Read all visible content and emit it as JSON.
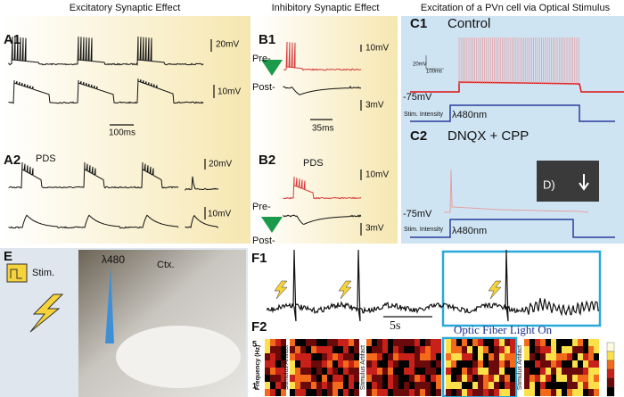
{
  "headers": {
    "a": "Excitatory Synaptic Effect",
    "b": "Inhibitory Synaptic Effect",
    "c": "Excitation of a PVn cell via Optical Stimulus"
  },
  "panel_a": {
    "a1": "A1",
    "a2": "A2",
    "a1_top_scale": "20mV",
    "a1_bottom_scale": "10mV",
    "time_scale": "100ms",
    "pds": "PDS",
    "a2_top_scale": "20mV",
    "a2_bottom_scale": "10mV"
  },
  "panel_b": {
    "b1": "B1",
    "b2": "B2",
    "pre_1": "Pre-",
    "post_1": "Post-",
    "b1_top_scale": "10mV",
    "b1_bottom_scale": "3mV",
    "time_scale": "35ms",
    "pds": "PDS",
    "b2_top_scale": "10mV",
    "b2_bottom_scale": "3mV",
    "pre_2": "Pre-",
    "post_2": "Post-"
  },
  "panel_c": {
    "c1": "C1",
    "c1_title": "Control",
    "c1_v_scale": "20mV",
    "c1_t_scale": "100ms",
    "c1_rest": "-75mV",
    "c1_stim": "Stim. Intensity",
    "c1_light": "λ480nm",
    "c2": "C2",
    "c2_title": "DNQX + CPP",
    "c2_rest": "-75mV",
    "c2_stim": "Stim. Intensity",
    "c2_light": "λ480nm",
    "d": "D)"
  },
  "panel_e": {
    "label": "E",
    "stim": "Stim.",
    "light": "λ480",
    "ctx": "Ctx."
  },
  "panel_f": {
    "f1": "F1",
    "time_scale": "5s",
    "light_on": "Optic Fiber Light On",
    "f2": "F2",
    "y_label": "Frequency (Hz)",
    "y_top": "5",
    "y_bottom": "1",
    "artifact_1": "Stimulus Artifact",
    "artifact_2": "Stimulus Artifact",
    "artifact_3": "Stimulus Artifact"
  }
}
